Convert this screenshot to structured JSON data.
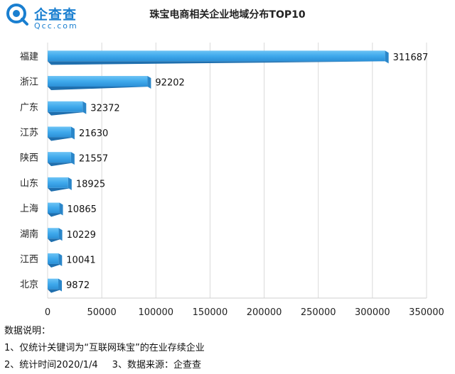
{
  "logo": {
    "name": "企查查",
    "domain": "Qcc.com"
  },
  "title": "珠宝电商相关企业地域分布TOP10",
  "chart_data": {
    "type": "bar",
    "orientation": "horizontal",
    "title": "珠宝电商相关企业地域分布TOP10",
    "categories": [
      "福建",
      "浙江",
      "广东",
      "江苏",
      "陕西",
      "山东",
      "上海",
      "湖南",
      "江西",
      "北京"
    ],
    "values": [
      311687,
      92202,
      32372,
      21630,
      21557,
      18925,
      10865,
      10229,
      10041,
      9872
    ],
    "xlim": [
      0,
      350000
    ],
    "xticks": [
      "0",
      "50000",
      "100000",
      "150000",
      "200000",
      "250000",
      "300000",
      "350000"
    ],
    "grid": true,
    "bar_color": "#3fa9ec",
    "bar_shadow_color": "#1f6fae"
  },
  "notes": {
    "heading": "数据说明：",
    "line1": "1、仅统计关键词为“互联网珠宝”的在业存续企业",
    "line2a": "2、统计时间2020/1/4",
    "line2b": "3、数据来源：企查查"
  }
}
